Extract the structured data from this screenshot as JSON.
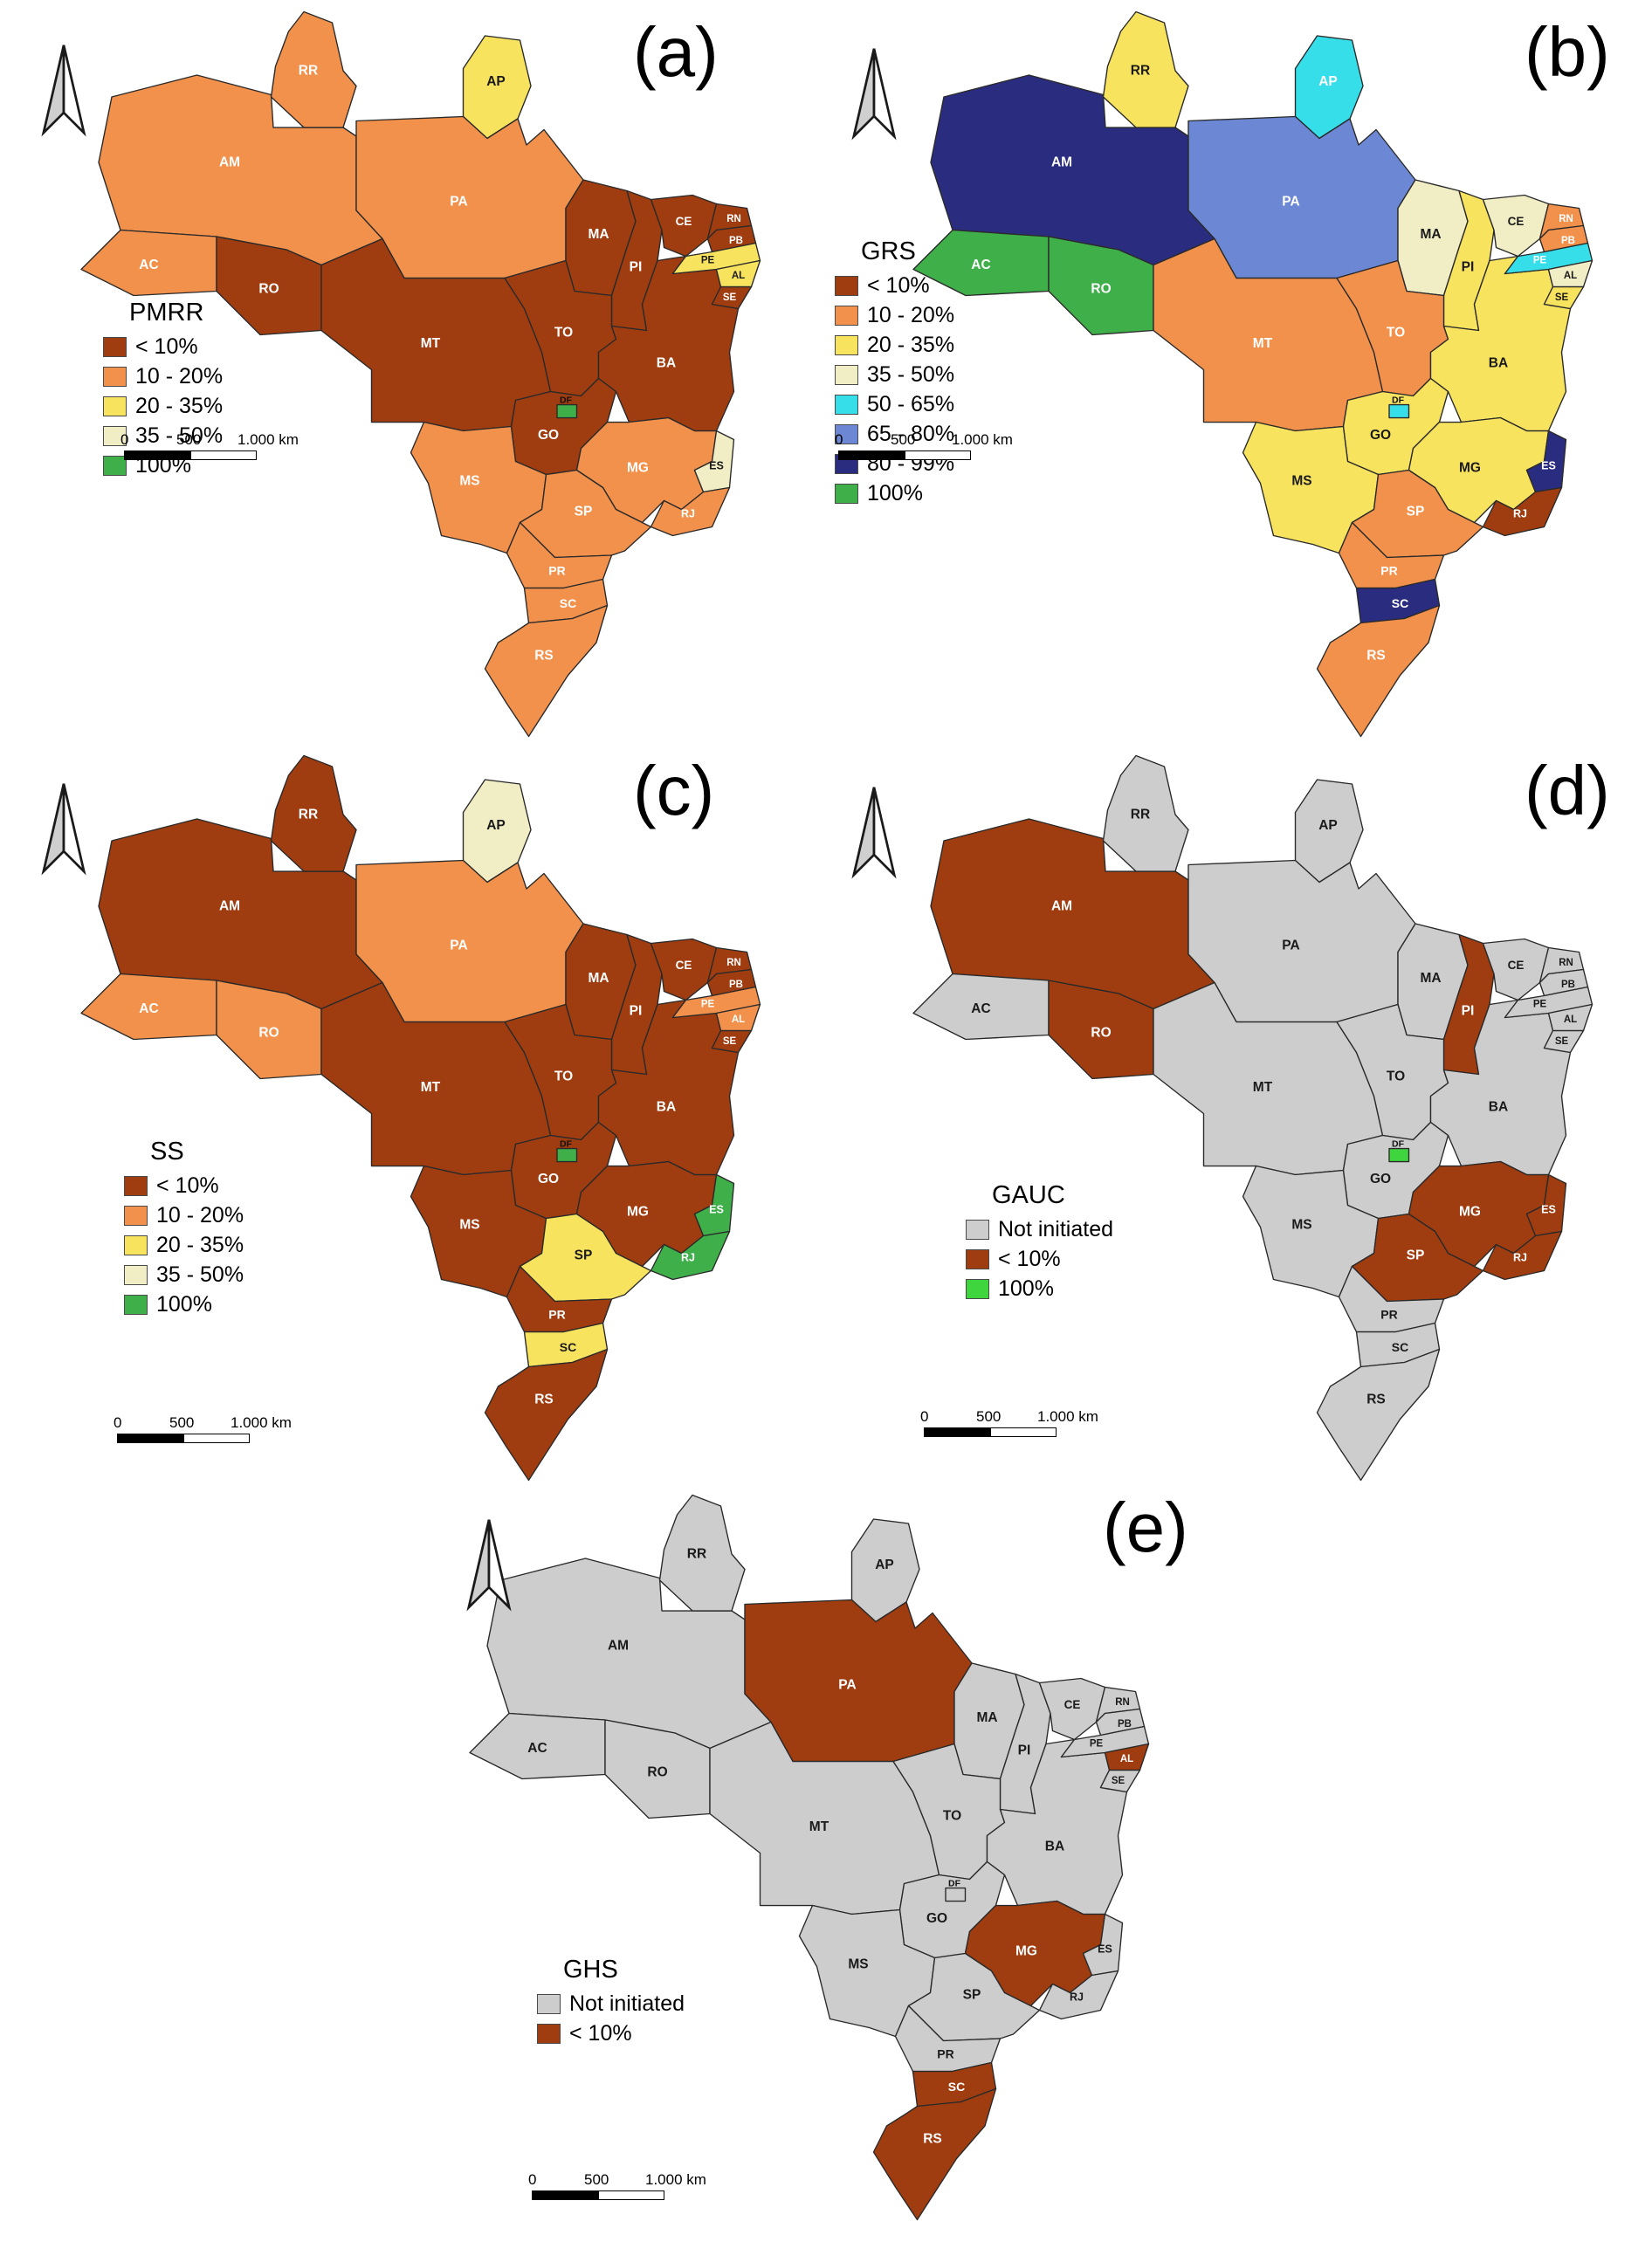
{
  "state_codes": [
    "AC",
    "AL",
    "AM",
    "AP",
    "BA",
    "CE",
    "DF",
    "ES",
    "GO",
    "MA",
    "MG",
    "MS",
    "MT",
    "PA",
    "PB",
    "PE",
    "PI",
    "PR",
    "RJ",
    "RN",
    "RO",
    "RR",
    "RS",
    "SC",
    "SE",
    "SP",
    "TO"
  ],
  "panels": [
    {
      "id": "a",
      "letter": "(a)",
      "legend_title": "PMRR",
      "legend_items": [
        {
          "key": "lt10",
          "label": "< 10%",
          "color": "#9F3C10"
        },
        {
          "key": "r10_20",
          "label": "10 - 20%",
          "color": "#F2914B"
        },
        {
          "key": "r20_35",
          "label": "20 - 35%",
          "color": "#F8E35F"
        },
        {
          "key": "r35_50",
          "label": "35 - 50%",
          "color": "#F1EEC5"
        },
        {
          "key": "r100",
          "label": "100%",
          "color": "#3FAF4A"
        }
      ],
      "scalebar_labels": [
        "0",
        "500",
        "1.000 km"
      ],
      "state_values": {
        "AC": "r10_20",
        "AL": "r20_35",
        "AM": "r10_20",
        "AP": "r20_35",
        "BA": "lt10",
        "CE": "lt10",
        "DF": "r100",
        "ES": "r35_50",
        "GO": "lt10",
        "MA": "lt10",
        "MG": "r10_20",
        "MS": "r10_20",
        "MT": "lt10",
        "PA": "r10_20",
        "PB": "lt10",
        "PE": "r20_35",
        "PI": "lt10",
        "PR": "r10_20",
        "RJ": "r10_20",
        "RN": "lt10",
        "RO": "lt10",
        "RR": "r10_20",
        "RS": "r10_20",
        "SC": "r10_20",
        "SE": "lt10",
        "SP": "r10_20",
        "TO": "lt10"
      }
    },
    {
      "id": "b",
      "letter": "(b)",
      "legend_title": "GRS",
      "legend_items": [
        {
          "key": "lt10",
          "label": "< 10%",
          "color": "#9F3C10"
        },
        {
          "key": "r10_20",
          "label": "10 - 20%",
          "color": "#F2914B"
        },
        {
          "key": "r20_35",
          "label": "20 - 35%",
          "color": "#F8E35F"
        },
        {
          "key": "r35_50",
          "label": "35 - 50%",
          "color": "#F1EEC5"
        },
        {
          "key": "r50_65",
          "label": "50 - 65%",
          "color": "#35DEE9"
        },
        {
          "key": "r65_80",
          "label": "65 - 80%",
          "color": "#6C87D4"
        },
        {
          "key": "r80_99",
          "label": "80 - 99%",
          "color": "#2A2D7F"
        },
        {
          "key": "r100",
          "label": "100%",
          "color": "#3FAF4A"
        }
      ],
      "scalebar_labels": [
        "0",
        "500",
        "1.000 km"
      ],
      "state_values": {
        "AC": "r100",
        "AL": "r35_50",
        "AM": "r80_99",
        "AP": "r50_65",
        "BA": "r20_35",
        "CE": "r35_50",
        "DF": "r50_65",
        "ES": "r80_99",
        "GO": "r20_35",
        "MA": "r35_50",
        "MG": "r20_35",
        "MS": "r20_35",
        "MT": "r10_20",
        "PA": "r65_80",
        "PB": "r10_20",
        "PE": "r50_65",
        "PI": "r20_35",
        "PR": "r10_20",
        "RJ": "lt10",
        "RN": "r10_20",
        "RO": "r100",
        "RR": "r20_35",
        "RS": "r10_20",
        "SC": "r80_99",
        "SE": "r20_35",
        "SP": "r10_20",
        "TO": "r10_20"
      }
    },
    {
      "id": "c",
      "letter": "(c)",
      "legend_title": "SS",
      "legend_items": [
        {
          "key": "lt10",
          "label": "< 10%",
          "color": "#9F3C10"
        },
        {
          "key": "r10_20",
          "label": "10 - 20%",
          "color": "#F2914B"
        },
        {
          "key": "r20_35",
          "label": "20 - 35%",
          "color": "#F8E35F"
        },
        {
          "key": "r35_50",
          "label": "35 - 50%",
          "color": "#F1EEC5"
        },
        {
          "key": "r100",
          "label": "100%",
          "color": "#3FAF4A"
        }
      ],
      "scalebar_labels": [
        "0",
        "500",
        "1.000 km"
      ],
      "state_values": {
        "AC": "r10_20",
        "AL": "r10_20",
        "AM": "lt10",
        "AP": "r35_50",
        "BA": "lt10",
        "CE": "lt10",
        "DF": "r100",
        "ES": "r100",
        "GO": "lt10",
        "MA": "lt10",
        "MG": "lt10",
        "MS": "lt10",
        "MT": "lt10",
        "PA": "r10_20",
        "PB": "lt10",
        "PE": "r10_20",
        "PI": "lt10",
        "PR": "lt10",
        "RJ": "r100",
        "RN": "lt10",
        "RO": "r10_20",
        "RR": "lt10",
        "RS": "lt10",
        "SC": "r20_35",
        "SE": "lt10",
        "SP": "r20_35",
        "TO": "lt10"
      }
    },
    {
      "id": "d",
      "letter": "(d)",
      "legend_title": "GAUC",
      "legend_items": [
        {
          "key": "not_initiated",
          "label": "Not initiated",
          "color": "#CDCDCD"
        },
        {
          "key": "lt10",
          "label": "< 10%",
          "color": "#9F3C10"
        },
        {
          "key": "r100",
          "label": "100%",
          "color": "#3FD53F"
        }
      ],
      "scalebar_labels": [
        "0",
        "500",
        "1.000 km"
      ],
      "state_values": {
        "AC": "not_initiated",
        "AL": "not_initiated",
        "AM": "lt10",
        "AP": "not_initiated",
        "BA": "not_initiated",
        "CE": "not_initiated",
        "DF": "r100",
        "ES": "lt10",
        "GO": "not_initiated",
        "MA": "not_initiated",
        "MG": "lt10",
        "MS": "not_initiated",
        "MT": "not_initiated",
        "PA": "not_initiated",
        "PB": "not_initiated",
        "PE": "not_initiated",
        "PI": "lt10",
        "PR": "not_initiated",
        "RJ": "lt10",
        "RN": "not_initiated",
        "RO": "lt10",
        "RR": "not_initiated",
        "RS": "not_initiated",
        "SC": "not_initiated",
        "SE": "not_initiated",
        "SP": "lt10",
        "TO": "not_initiated"
      }
    },
    {
      "id": "e",
      "letter": "(e)",
      "legend_title": "GHS",
      "legend_items": [
        {
          "key": "not_initiated",
          "label": "Not initiated",
          "color": "#CDCDCD"
        },
        {
          "key": "lt10",
          "label": "< 10%",
          "color": "#9F3C10"
        }
      ],
      "scalebar_labels": [
        "0",
        "500",
        "1.000 km"
      ],
      "state_values": {
        "AC": "not_initiated",
        "AL": "lt10",
        "AM": "not_initiated",
        "AP": "not_initiated",
        "BA": "not_initiated",
        "CE": "not_initiated",
        "DF": "not_initiated",
        "ES": "not_initiated",
        "GO": "not_initiated",
        "MA": "not_initiated",
        "MG": "lt10",
        "MS": "not_initiated",
        "MT": "not_initiated",
        "PA": "lt10",
        "PB": "not_initiated",
        "PE": "not_initiated",
        "PI": "not_initiated",
        "PR": "not_initiated",
        "RJ": "not_initiated",
        "RN": "not_initiated",
        "RO": "not_initiated",
        "RR": "not_initiated",
        "RS": "lt10",
        "SC": "lt10",
        "SE": "not_initiated",
        "SP": "not_initiated",
        "TO": "not_initiated"
      }
    }
  ]
}
